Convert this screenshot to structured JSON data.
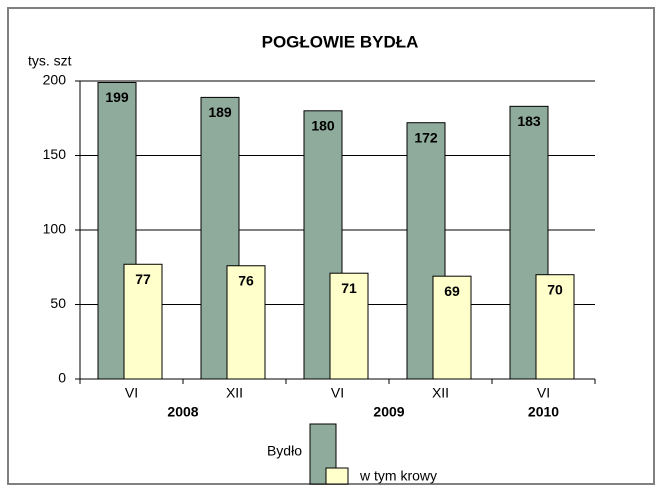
{
  "chart_data": {
    "type": "bar",
    "title": "POGŁOWIE  BYDŁA",
    "y_label": "tys. szt",
    "categories": [
      "VI",
      "XII",
      "VI",
      "XII",
      "VI"
    ],
    "groups": [
      {
        "label": "2008",
        "size": 2
      },
      {
        "label": "2009",
        "size": 2
      },
      {
        "label": "2010",
        "size": 1
      }
    ],
    "series": [
      {
        "name": "Bydło",
        "color": "#8fab9c",
        "values": [
          199,
          189,
          180,
          172,
          183
        ]
      },
      {
        "name": "w tym krowy",
        "color": "#ffffcc",
        "values": [
          77,
          76,
          71,
          69,
          70
        ]
      }
    ],
    "ylim": [
      0,
      200
    ],
    "yticks": [
      0,
      50,
      100,
      150,
      200
    ],
    "grid": true
  }
}
